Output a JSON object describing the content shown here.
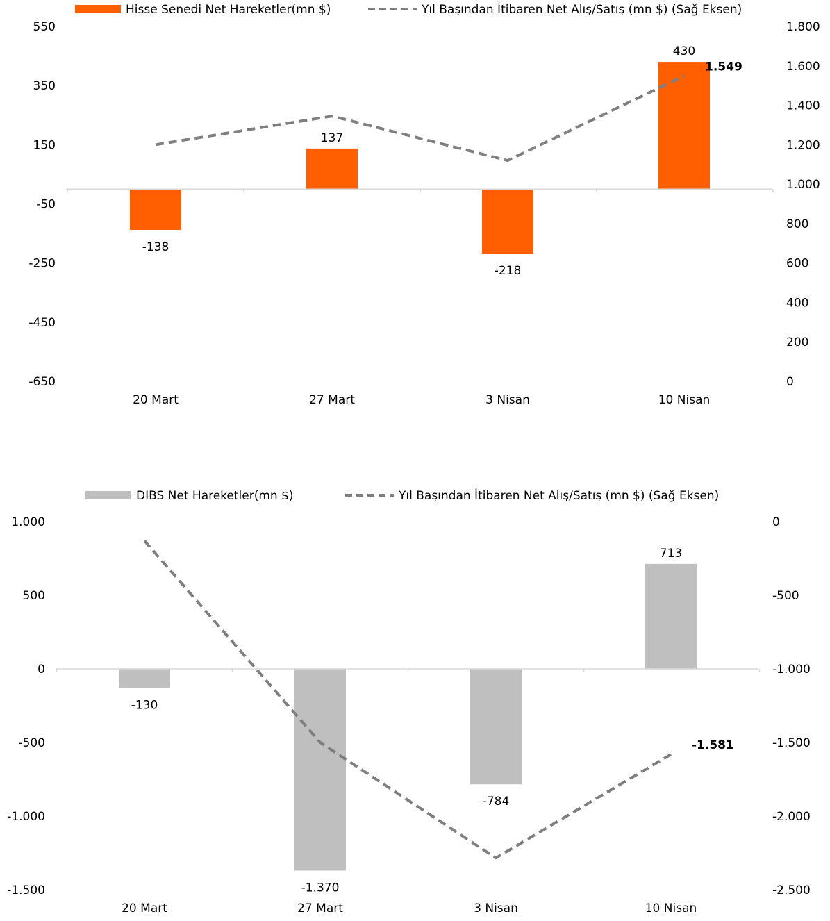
{
  "chart_data": [
    {
      "type": "bar",
      "categories": [
        "20 Mart",
        "27 Mart",
        "3 Nisan",
        "10 Nisan"
      ],
      "series": [
        {
          "name": "Hisse Senedi Net Hareketler(mn $)",
          "kind": "bar",
          "axis": "left",
          "values": [
            -138,
            137,
            -218,
            430
          ],
          "labels": [
            "-138",
            "137",
            "-218",
            "430"
          ],
          "color": "#ff5f00"
        },
        {
          "name": "Yıl Başından İtibaren Net Alış/Satış (mn $) (Sağ Eksen)",
          "kind": "line",
          "axis": "right",
          "values": [
            1200,
            1345,
            1120,
            1549
          ],
          "last_label": "1.549",
          "color": "#7f7f7f",
          "dashed": true
        }
      ],
      "ylim": [
        -650,
        550
      ],
      "yticks": [
        550,
        350,
        150,
        -50,
        -250,
        -450,
        -650
      ],
      "ytick_labels": [
        "550",
        "350",
        "150",
        "-50",
        "-250",
        "-450",
        "-650"
      ],
      "y2lim": [
        0,
        1800
      ],
      "y2ticks": [
        1800,
        1600,
        1400,
        1200,
        1000,
        800,
        600,
        400,
        200,
        0
      ],
      "y2tick_labels": [
        "1.800",
        "1.600",
        "1.400",
        "1.200",
        "1.000",
        "800",
        "600",
        "400",
        "200",
        "0"
      ],
      "legend_position": "top"
    },
    {
      "type": "bar",
      "categories": [
        "20 Mart",
        "27 Mart",
        "3 Nisan",
        "10 Nisan"
      ],
      "series": [
        {
          "name": "DIBS Net Hareketler(mn $)",
          "kind": "bar",
          "axis": "left",
          "values": [
            -130,
            -1370,
            -784,
            713
          ],
          "labels": [
            "-130",
            "-1.370",
            "-784",
            "713"
          ],
          "color": "#bfbfbf"
        },
        {
          "name": "Yıl Başından İtibaren Net Alış/Satış (mn $) (Sağ Eksen)",
          "kind": "line",
          "axis": "right",
          "values": [
            -130,
            -1500,
            -2284,
            -1581
          ],
          "last_label": "-1.581",
          "color": "#7f7f7f",
          "dashed": true
        }
      ],
      "ylim": [
        -1500,
        1000
      ],
      "yticks": [
        1000,
        500,
        0,
        -500,
        -1000,
        -1500
      ],
      "ytick_labels": [
        "1.000",
        "500",
        "0",
        "-500",
        "-1.000",
        "-1.500"
      ],
      "y2lim": [
        -2500,
        0
      ],
      "y2ticks": [
        0,
        -500,
        -1000,
        -1500,
        -2000,
        -2500
      ],
      "y2tick_labels": [
        "0",
        "-500",
        "-1.000",
        "-1.500",
        "-2.000",
        "-2.500"
      ],
      "legend_position": "top"
    }
  ]
}
